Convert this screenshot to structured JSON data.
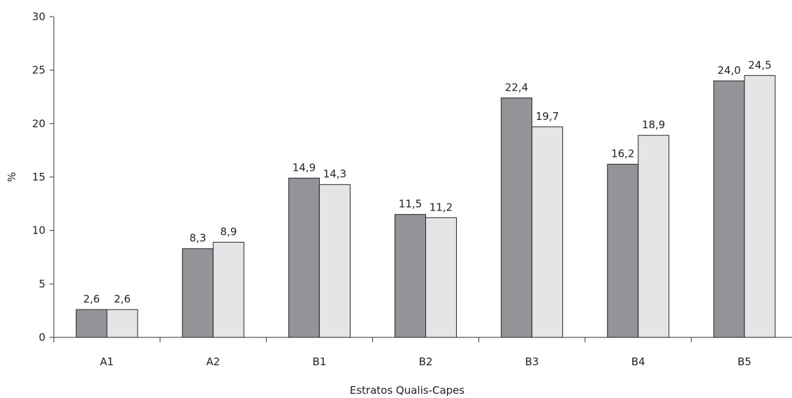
{
  "chart_data": {
    "type": "bar",
    "xlabel": "Estratos Qualis-Capes",
    "ylabel": "%",
    "ylim": [
      0,
      30
    ],
    "yticks": [
      0,
      5,
      10,
      15,
      20,
      25,
      30
    ],
    "categories": [
      "A1",
      "A2",
      "B1",
      "B2",
      "B3",
      "B4",
      "B5"
    ],
    "series": [
      {
        "color": "#939498",
        "values": [
          2.6,
          8.3,
          14.9,
          11.5,
          22.4,
          16.2,
          24.0
        ],
        "labels": [
          "2,6",
          "8,3",
          "14,9",
          "11,5",
          "22,4",
          "16,2",
          "24,0"
        ]
      },
      {
        "color": "#e4e5e7",
        "values": [
          2.6,
          8.9,
          14.3,
          11.2,
          19.7,
          18.9,
          24.5
        ],
        "labels": [
          "2,6",
          "8,9",
          "14,3",
          "11,2",
          "19,7",
          "18,9",
          "24,5"
        ]
      }
    ],
    "grid": false,
    "legend": "none"
  }
}
